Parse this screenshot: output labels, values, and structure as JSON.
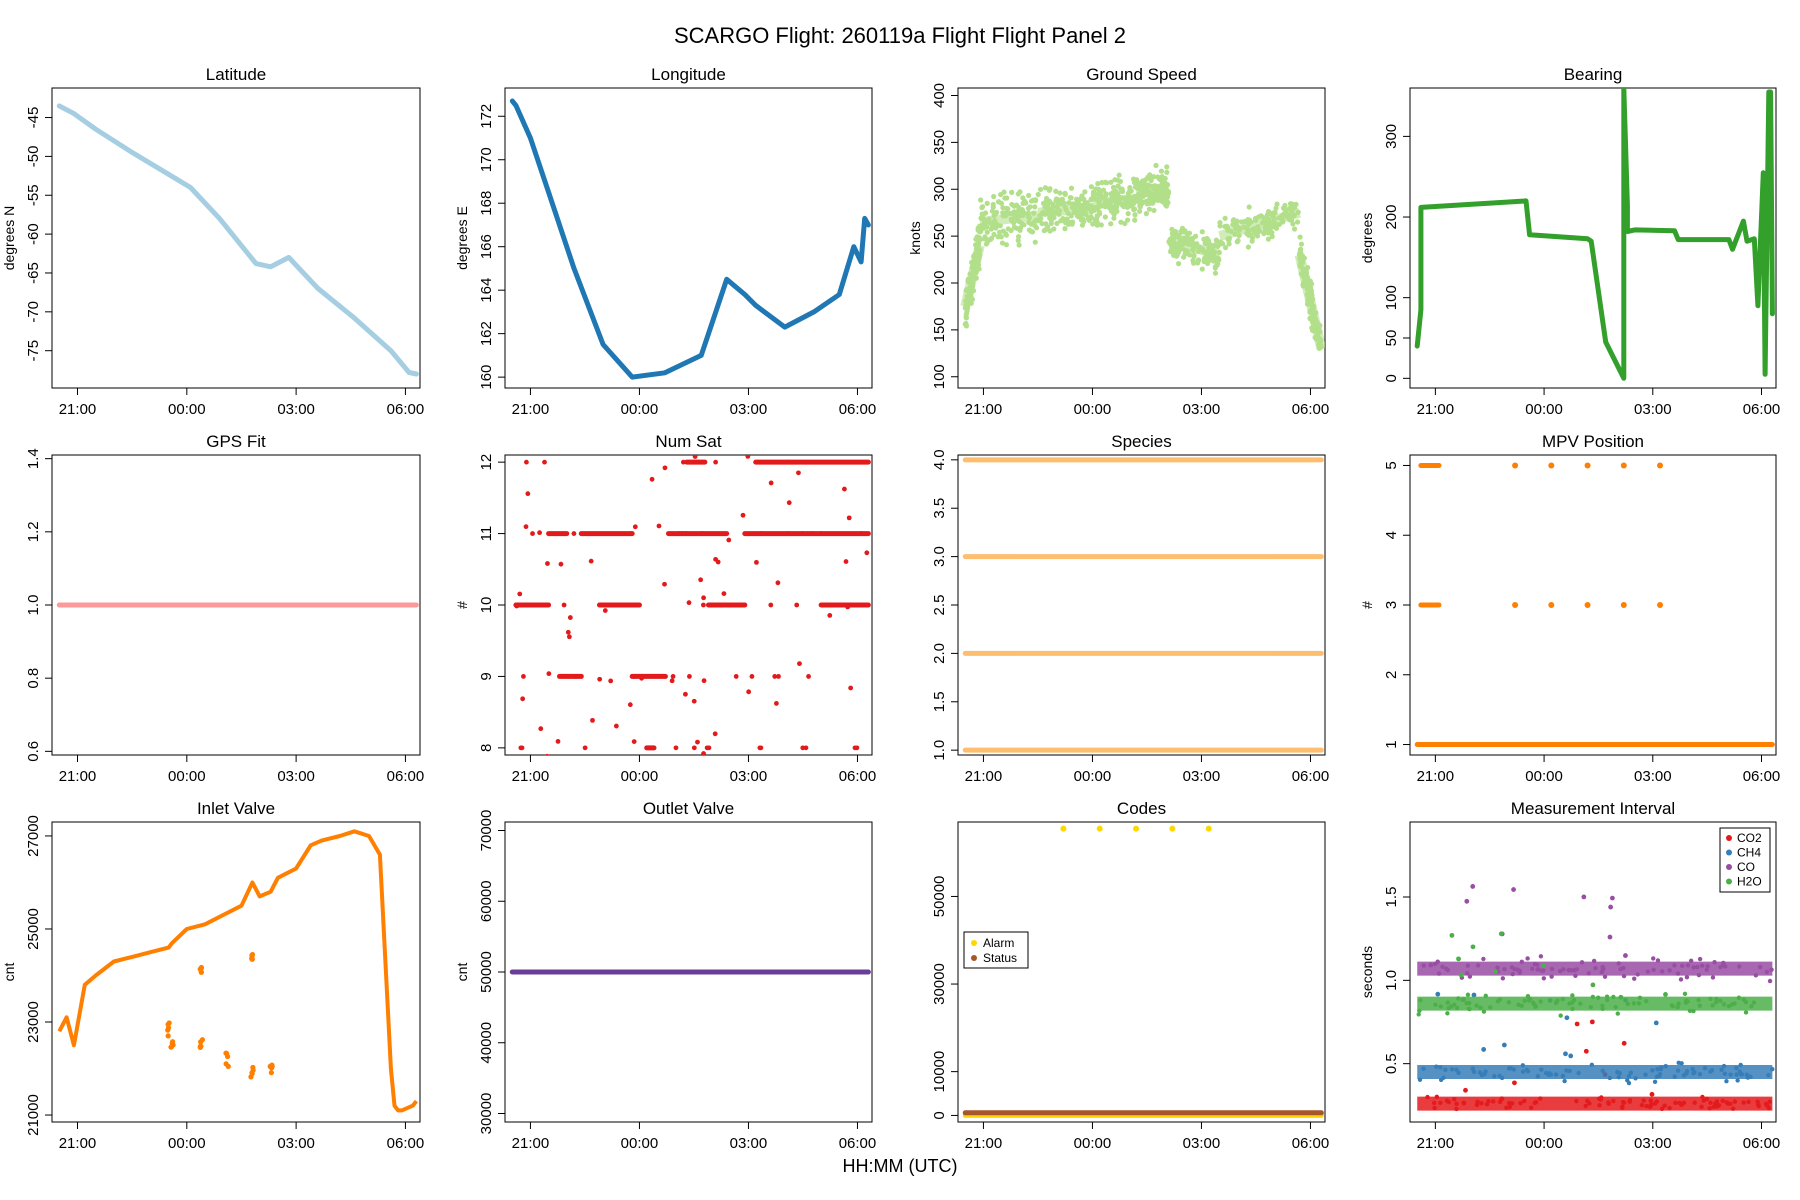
{
  "suptitle": "SCARGO Flight: 260119a  Flight Flight  Panel 2",
  "x_axis_label": "HH:MM (UTC)",
  "colors": {
    "lightblue": "#A6CEE3",
    "blue": "#1F78B4",
    "lightgreen": "#B2DF8A",
    "green": "#33A02C",
    "pink": "#FB9A99",
    "red": "#E31A1C",
    "peach": "#FDBF6F",
    "orange": "#FF7F00",
    "purple": "#6A3D9A",
    "gold": "#FFD700",
    "brown": "#A65628",
    "mpurple": "#984EA3",
    "mblue": "#377EB8",
    "mgreen": "#4DAF4A",
    "mred": "#E41A1C"
  },
  "chart_data": [
    {
      "id": "latitude",
      "type": "line",
      "title": "Latitude",
      "ylabel": "degrees N",
      "xticks": [
        "21:00",
        "00:00",
        "03:00",
        "06:00"
      ],
      "xlim": [
        20.3,
        30.4
      ],
      "ylim": [
        -79.8,
        -41.2
      ],
      "yticks": [
        -45,
        -50,
        -55,
        -60,
        -65,
        -70,
        -75
      ],
      "yticks_labels": [
        "-45",
        "-50",
        "-55",
        "-60",
        "-65",
        "-70",
        "-75"
      ],
      "color": "lightblue",
      "x": [
        20.5,
        20.9,
        21.5,
        22.5,
        23.5,
        24.1,
        24.9,
        25.9,
        26.3,
        26.8,
        27.6,
        28.6,
        29.6,
        30.1,
        30.3
      ],
      "y": [
        -43.5,
        -44.5,
        -46.5,
        -49.5,
        -52.3,
        -54,
        -58,
        -63.8,
        -64.2,
        -63,
        -67,
        -70.8,
        -75,
        -77.8,
        -78
      ]
    },
    {
      "id": "longitude",
      "type": "line",
      "title": "Longitude",
      "ylabel": "degrees E",
      "xticks": [
        "21:00",
        "00:00",
        "03:00",
        "06:00"
      ],
      "xlim": [
        20.3,
        30.4
      ],
      "ylim": [
        159.5,
        173.3
      ],
      "yticks": [
        160,
        162,
        164,
        166,
        168,
        170,
        172
      ],
      "yticks_labels": [
        "160",
        "162",
        "164",
        "166",
        "168",
        "170",
        "172"
      ],
      "color": "blue",
      "x": [
        20.5,
        20.6,
        21,
        21.5,
        22.2,
        23,
        23.8,
        24.7,
        25.7,
        26.4,
        26.9,
        27.2,
        28,
        28.8,
        29.5,
        29.9,
        30.1,
        30.2,
        30.3
      ],
      "y": [
        172.7,
        172.5,
        171,
        168.5,
        165,
        161.5,
        160,
        160.2,
        161,
        164.5,
        163.8,
        163.3,
        162.3,
        163,
        163.8,
        166,
        165.3,
        167.3,
        167
      ],
      "markers": false
    },
    {
      "id": "ground_speed",
      "type": "scatter",
      "title": "Ground Speed",
      "ylabel": "knots",
      "xticks": [
        "21:00",
        "00:00",
        "03:00",
        "06:00"
      ],
      "xlim": [
        20.3,
        30.4
      ],
      "ylim": [
        88,
        408
      ],
      "yticks": [
        100,
        150,
        200,
        250,
        300,
        350,
        400
      ],
      "yticks_labels": [
        "100",
        "150",
        "200",
        "250",
        "300",
        "350",
        "400"
      ],
      "color": "lightgreen",
      "segments": [
        {
          "x0": 20.5,
          "x1": 20.9,
          "y0": 175,
          "y1": 240,
          "spread": 30
        },
        {
          "x0": 20.9,
          "x1": 22.5,
          "y0": 265,
          "y1": 272,
          "spread": 35
        },
        {
          "x0": 22.5,
          "x1": 24,
          "y0": 275,
          "y1": 280,
          "spread": 30
        },
        {
          "x0": 24,
          "x1": 25.2,
          "y0": 285,
          "y1": 290,
          "spread": 35
        },
        {
          "x0": 25.2,
          "x1": 26.1,
          "y0": 295,
          "y1": 300,
          "spread": 30
        },
        {
          "x0": 26.1,
          "x1": 27.5,
          "y0": 245,
          "y1": 230,
          "spread": 25
        },
        {
          "x0": 27.5,
          "x1": 29.7,
          "y0": 250,
          "y1": 275,
          "spread": 25
        },
        {
          "x0": 29.7,
          "x1": 30.3,
          "y0": 230,
          "y1": 130,
          "spread": 30
        }
      ]
    },
    {
      "id": "bearing",
      "type": "line",
      "title": "Bearing",
      "ylabel": "degrees",
      "xticks": [
        "21:00",
        "00:00",
        "03:00",
        "06:00"
      ],
      "xlim": [
        20.3,
        30.4
      ],
      "ylim": [
        -12,
        360
      ],
      "yticks": [
        0,
        50,
        100,
        200,
        300
      ],
      "yticks_labels": [
        "0",
        "50",
        "100",
        "200",
        "300"
      ],
      "color": "green",
      "x": [
        20.5,
        20.6,
        20.6,
        23.5,
        23.6,
        25.2,
        25.3,
        25.7,
        25.7,
        26.2,
        26.2,
        26.3,
        26.3,
        26.5,
        27.6,
        27.7,
        29.1,
        29.2,
        29.5,
        29.6,
        29.8,
        29.9,
        30.05,
        30.1,
        30.2,
        30.25,
        30.3
      ],
      "y": [
        40,
        85,
        212,
        220,
        178,
        173,
        170,
        45,
        45,
        0,
        360,
        215,
        182,
        184,
        183,
        172,
        172,
        160,
        195,
        170,
        173,
        90,
        255,
        5,
        355,
        355,
        80
      ],
      "markers": false
    },
    {
      "id": "gps_fit",
      "type": "scatter",
      "title": "GPS Fit",
      "ylabel": "",
      "xticks": [
        "21:00",
        "00:00",
        "03:00",
        "06:00"
      ],
      "xlim": [
        20.3,
        30.4
      ],
      "ylim": [
        0.59,
        1.41
      ],
      "yticks": [
        0.6,
        0.8,
        1.0,
        1.2,
        1.4
      ],
      "yticks_labels": [
        "0.6",
        "0.8",
        "1.0",
        "1.2",
        "1.4"
      ],
      "color": "pink",
      "flat": [
        {
          "x0": 20.5,
          "x1": 30.3,
          "y": 1.0
        }
      ]
    },
    {
      "id": "num_sat",
      "type": "scatter",
      "title": "Num Sat",
      "ylabel": "#",
      "xticks": [
        "21:00",
        "00:00",
        "03:00",
        "06:00"
      ],
      "xlim": [
        20.3,
        30.4
      ],
      "ylim": [
        7.9,
        12.1
      ],
      "yticks": [
        8,
        9,
        10,
        11,
        12
      ],
      "yticks_labels": [
        "8",
        "9",
        "10",
        "11",
        "12"
      ],
      "color": "red",
      "flat": [
        {
          "x0": 20.6,
          "x1": 21.5,
          "y": 10
        },
        {
          "x0": 21.5,
          "x1": 22,
          "y": 11
        },
        {
          "x0": 21.8,
          "x1": 22.4,
          "y": 9
        },
        {
          "x0": 22.4,
          "x1": 23.8,
          "y": 11
        },
        {
          "x0": 22.9,
          "x1": 24,
          "y": 10
        },
        {
          "x0": 23.8,
          "x1": 24.7,
          "y": 9
        },
        {
          "x0": 24.2,
          "x1": 24.4,
          "y": 8
        },
        {
          "x0": 24.8,
          "x1": 26.4,
          "y": 11
        },
        {
          "x0": 25.3,
          "x1": 25.8,
          "y": 12
        },
        {
          "x0": 25.9,
          "x1": 26.9,
          "y": 10
        },
        {
          "x0": 26.9,
          "x1": 28.1,
          "y": 11
        },
        {
          "x0": 27.2,
          "x1": 30.3,
          "y": 12
        },
        {
          "x0": 28.1,
          "x1": 30.3,
          "y": 11
        },
        {
          "x0": 29,
          "x1": 30.3,
          "y": 10
        }
      ]
    },
    {
      "id": "species",
      "type": "scatter",
      "title": "Species",
      "ylabel": "",
      "xticks": [
        "21:00",
        "00:00",
        "03:00",
        "06:00"
      ],
      "xlim": [
        20.3,
        30.4
      ],
      "ylim": [
        0.95,
        4.05
      ],
      "yticks": [
        1.0,
        1.5,
        2.0,
        2.5,
        3.0,
        3.5,
        4.0
      ],
      "yticks_labels": [
        "1.0",
        "1.5",
        "2.0",
        "2.5",
        "3.0",
        "3.5",
        "4.0"
      ],
      "color": "peach",
      "flat": [
        {
          "x0": 20.5,
          "x1": 30.3,
          "y": 1.0
        },
        {
          "x0": 20.5,
          "x1": 30.3,
          "y": 2.0
        },
        {
          "x0": 20.5,
          "x1": 30.3,
          "y": 3.0
        },
        {
          "x0": 20.5,
          "x1": 30.3,
          "y": 4.0
        }
      ]
    },
    {
      "id": "mpv_position",
      "type": "scatter",
      "title": "MPV Position",
      "ylabel": "#",
      "xticks": [
        "21:00",
        "00:00",
        "03:00",
        "06:00"
      ],
      "xlim": [
        20.3,
        30.4
      ],
      "ylim": [
        0.85,
        5.15
      ],
      "yticks": [
        1,
        2,
        3,
        4,
        5
      ],
      "yticks_labels": [
        "1",
        "2",
        "3",
        "4",
        "5"
      ],
      "color": "orange",
      "flat": [
        {
          "x0": 20.5,
          "x1": 30.3,
          "y": 1
        },
        {
          "x0": 20.6,
          "x1": 21.1,
          "y": 3
        },
        {
          "x0": 20.6,
          "x1": 21.1,
          "y": 5
        }
      ],
      "dots": [
        {
          "x": 23.2,
          "y": 3
        },
        {
          "x": 24.2,
          "y": 3
        },
        {
          "x": 25.2,
          "y": 3
        },
        {
          "x": 26.2,
          "y": 3
        },
        {
          "x": 27.2,
          "y": 3
        },
        {
          "x": 23.2,
          "y": 5
        },
        {
          "x": 24.2,
          "y": 5
        },
        {
          "x": 25.2,
          "y": 5
        },
        {
          "x": 26.2,
          "y": 5
        },
        {
          "x": 27.2,
          "y": 5
        }
      ]
    },
    {
      "id": "inlet_valve",
      "type": "scatter",
      "title": "Inlet Valve",
      "ylabel": "cnt",
      "xticks": [
        "21:00",
        "00:00",
        "03:00",
        "06:00"
      ],
      "xlim": [
        20.3,
        30.4
      ],
      "ylim": [
        20850,
        27300
      ],
      "yticks": [
        21000,
        23000,
        25000,
        27000
      ],
      "yticks_labels": [
        "21000",
        "23000",
        "25000",
        "27000"
      ],
      "color": "orange",
      "x": [
        20.5,
        20.7,
        20.9,
        21.2,
        21.5,
        22,
        22.5,
        23,
        23.5,
        23.6,
        24,
        24.5,
        25,
        25.5,
        25.8,
        26,
        26.3,
        26.5,
        27,
        27.4,
        27.7,
        28.2,
        28.6,
        29,
        29.3,
        29.6,
        29.7,
        29.8,
        29.9,
        30.2,
        30.3
      ],
      "y": [
        22800,
        23100,
        22500,
        23800,
        24000,
        24300,
        24400,
        24500,
        24600,
        24700,
        25000,
        25100,
        25300,
        25500,
        26000,
        25700,
        25800,
        26100,
        26300,
        26800,
        26900,
        27000,
        27100,
        27000,
        26600,
        22000,
        21200,
        21100,
        21100,
        21200,
        21300
      ],
      "scatter_dots": [
        {
          "x": 23.5,
          "y": 22800
        },
        {
          "x": 23.6,
          "y": 22500
        },
        {
          "x": 24.4,
          "y": 22600
        },
        {
          "x": 25.1,
          "y": 22200
        },
        {
          "x": 25.8,
          "y": 21900
        },
        {
          "x": 26.3,
          "y": 22100
        },
        {
          "x": 24.4,
          "y": 24100
        },
        {
          "x": 25.8,
          "y": 24400
        }
      ]
    },
    {
      "id": "outlet_valve",
      "type": "scatter",
      "title": "Outlet Valve",
      "ylabel": "cnt",
      "xticks": [
        "21:00",
        "00:00",
        "03:00",
        "06:00"
      ],
      "xlim": [
        20.3,
        30.4
      ],
      "ylim": [
        28800,
        71200
      ],
      "yticks": [
        30000,
        40000,
        50000,
        60000,
        70000
      ],
      "yticks_labels": [
        "30000",
        "40000",
        "50000",
        "60000",
        "70000"
      ],
      "color": "purple",
      "flat": [
        {
          "x0": 20.5,
          "x1": 30.3,
          "y": 50000
        }
      ]
    },
    {
      "id": "codes",
      "type": "scatter",
      "title": "Codes",
      "ylabel": "",
      "xticks": [
        "21:00",
        "00:00",
        "03:00",
        "06:00"
      ],
      "xlim": [
        20.3,
        30.4
      ],
      "ylim": [
        -1500,
        67000
      ],
      "yticks": [
        0,
        10000,
        30000,
        50000
      ],
      "yticks_labels": [
        "0",
        "10000",
        "30000",
        "50000"
      ],
      "flat": [
        {
          "x0": 20.5,
          "x1": 30.3,
          "y": 0,
          "color": "gold"
        },
        {
          "x0": 20.5,
          "x1": 30.3,
          "y": 600,
          "color": "brown"
        }
      ],
      "dots": [
        {
          "x": 23.2,
          "y": 65500,
          "color": "gold"
        },
        {
          "x": 24.2,
          "y": 65500,
          "color": "gold"
        },
        {
          "x": 25.2,
          "y": 65500,
          "color": "gold"
        },
        {
          "x": 26.2,
          "y": 65500,
          "color": "gold"
        },
        {
          "x": 27.2,
          "y": 65500,
          "color": "gold"
        }
      ],
      "legend": {
        "position": "left",
        "entries": [
          {
            "label": "Alarm",
            "color": "gold"
          },
          {
            "label": "Status",
            "color": "brown"
          }
        ]
      }
    },
    {
      "id": "measurement_interval",
      "type": "scatter",
      "title": "Measurement Interval",
      "ylabel": "seconds",
      "xticks": [
        "21:00",
        "00:00",
        "03:00",
        "06:00"
      ],
      "xlim": [
        20.3,
        30.4
      ],
      "ylim": [
        0.15,
        1.95
      ],
      "yticks": [
        0.5,
        1.0,
        1.5
      ],
      "yticks_labels": [
        "0.5",
        "1.0",
        "1.5"
      ],
      "series": [
        {
          "name": "CO2",
          "color": "mred",
          "level": 0.26,
          "spread": 0.02
        },
        {
          "name": "CH4",
          "color": "mblue",
          "level": 0.45,
          "spread": 0.035
        },
        {
          "name": "CO",
          "color": "mpurple",
          "level": 1.07,
          "spread": 0.04
        },
        {
          "name": "H2O",
          "color": "mgreen",
          "level": 0.86,
          "spread": 0.035
        }
      ],
      "legend": {
        "position": "top-right"
      }
    }
  ]
}
